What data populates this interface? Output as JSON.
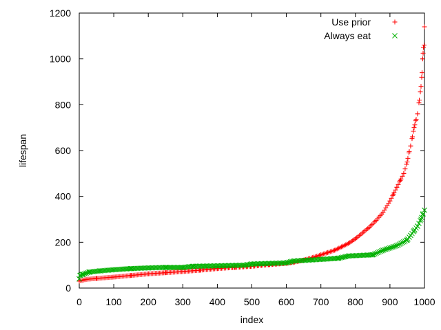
{
  "chart_data": {
    "type": "scatter",
    "title": "",
    "xlabel": "index",
    "ylabel": "lifespan",
    "xlim": [
      0,
      1000
    ],
    "ylim": [
      0,
      1200
    ],
    "xticks": [
      0,
      100,
      200,
      300,
      400,
      500,
      600,
      700,
      800,
      900,
      1000
    ],
    "yticks": [
      0,
      200,
      400,
      600,
      800,
      1000,
      1200
    ],
    "grid": false,
    "legend_position": "top-right",
    "series": [
      {
        "name": "Use prior",
        "marker": "plus",
        "color": "#ff0000",
        "points": [
          [
            0,
            30
          ],
          [
            20,
            38
          ],
          [
            50,
            42
          ],
          [
            100,
            48
          ],
          [
            150,
            55
          ],
          [
            200,
            62
          ],
          [
            250,
            67
          ],
          [
            300,
            72
          ],
          [
            350,
            78
          ],
          [
            400,
            85
          ],
          [
            450,
            90
          ],
          [
            500,
            95
          ],
          [
            550,
            102
          ],
          [
            600,
            108
          ],
          [
            620,
            112
          ],
          [
            650,
            122
          ],
          [
            680,
            135
          ],
          [
            700,
            145
          ],
          [
            720,
            155
          ],
          [
            740,
            165
          ],
          [
            760,
            180
          ],
          [
            780,
            195
          ],
          [
            800,
            215
          ],
          [
            820,
            240
          ],
          [
            840,
            265
          ],
          [
            860,
            295
          ],
          [
            880,
            330
          ],
          [
            900,
            380
          ],
          [
            910,
            410
          ],
          [
            920,
            440
          ],
          [
            930,
            470
          ],
          [
            940,
            500
          ],
          [
            950,
            550
          ],
          [
            955,
            590
          ],
          [
            960,
            620
          ],
          [
            965,
            660
          ],
          [
            970,
            700
          ],
          [
            975,
            730
          ],
          [
            980,
            760
          ],
          [
            985,
            820
          ],
          [
            990,
            880
          ],
          [
            993,
            940
          ],
          [
            995,
            1000
          ],
          [
            997,
            1050
          ],
          [
            999,
            1060
          ],
          [
            1000,
            1140
          ]
        ]
      },
      {
        "name": "Always eat",
        "marker": "cross",
        "color": "#00b000",
        "points": [
          [
            0,
            40
          ],
          [
            2,
            55
          ],
          [
            10,
            60
          ],
          [
            30,
            70
          ],
          [
            60,
            75
          ],
          [
            100,
            80
          ],
          [
            150,
            85
          ],
          [
            200,
            88
          ],
          [
            250,
            90
          ],
          [
            300,
            90
          ],
          [
            330,
            95
          ],
          [
            400,
            97
          ],
          [
            480,
            100
          ],
          [
            500,
            105
          ],
          [
            600,
            110
          ],
          [
            620,
            118
          ],
          [
            700,
            125
          ],
          [
            750,
            130
          ],
          [
            780,
            140
          ],
          [
            850,
            145
          ],
          [
            880,
            165
          ],
          [
            920,
            185
          ],
          [
            950,
            210
          ],
          [
            960,
            230
          ],
          [
            970,
            250
          ],
          [
            980,
            270
          ],
          [
            990,
            300
          ],
          [
            995,
            320
          ],
          [
            1000,
            340
          ]
        ]
      }
    ]
  }
}
